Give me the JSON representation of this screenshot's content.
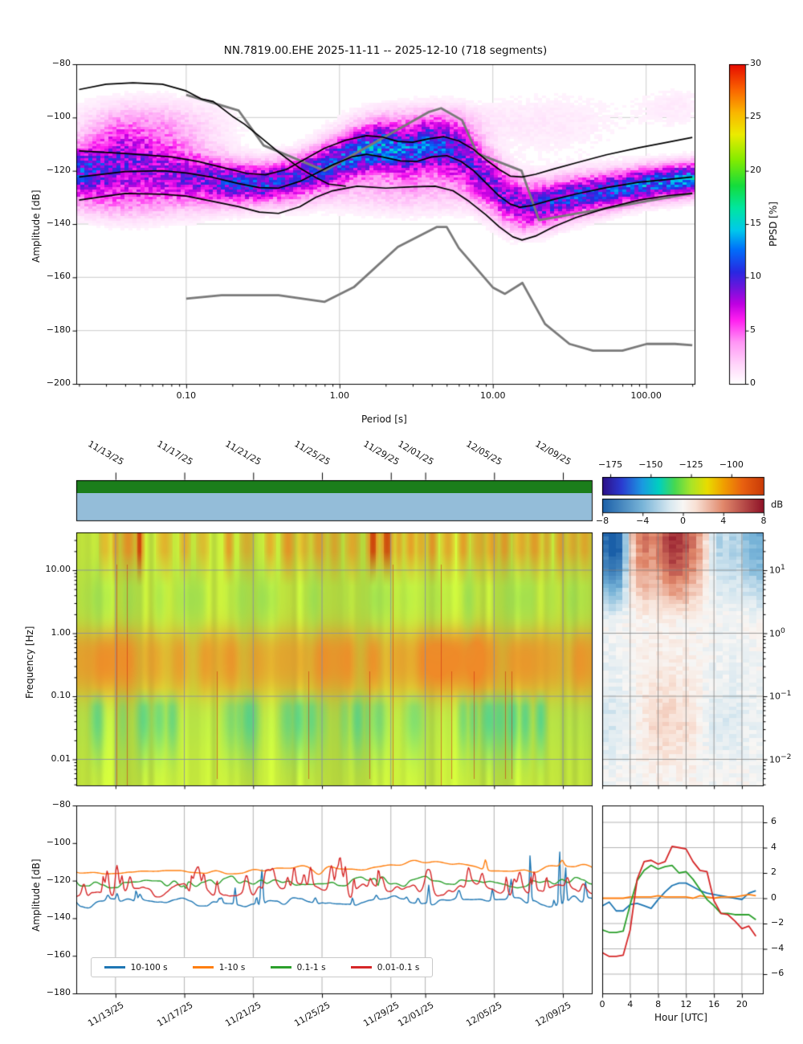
{
  "figure": {
    "type": "seismic noise PPSD / spectrogram summary figure",
    "background": "#ffffff"
  },
  "chart_data": {
    "ppsd": {
      "type": "heatmap",
      "title": "NN.7819.00.EHE   2025-11-11 -- 2025-12-10  (718 segments)",
      "station": "NN.7819.00.EHE",
      "date_range": "2025-11-11 -- 2025-12-10",
      "segments": "718 segments",
      "xlabel": "Period [s]",
      "ylabel": "Amplitude [dB]",
      "xscale": "log",
      "xlim": [
        0.0192,
        207
      ],
      "ylim": [
        -200,
        -80
      ],
      "xticks": {
        "values": [
          0.1,
          1,
          10,
          100
        ],
        "labels": [
          "0.10",
          "1.00",
          "10.00",
          "100.00"
        ]
      },
      "yticks": {
        "values": [
          -80,
          -100,
          -120,
          -140,
          -160,
          -180,
          -200
        ],
        "labels": [
          "−80",
          "−100",
          "−120",
          "−140",
          "−160",
          "−180",
          "−200"
        ]
      },
      "colorbar": {
        "label": "PPSD [%]",
        "ticks": [
          "0",
          "5",
          "10",
          "15",
          "20",
          "25",
          "30"
        ],
        "tick_values": [
          0,
          5,
          10,
          15,
          20,
          25,
          30
        ],
        "range": [
          0,
          30
        ],
        "colormap": "pqlx (white-magenta-blue-cyan-green-yellow-red)"
      },
      "grid": true,
      "density_note": "probability cloud: hump centered ~-120 dB at 0.02-0.15 s, dip ~-125 at 0.3-0.5 s, hump ~-111 at 1-6 s, dip ~-133 at 10-15 s, rising to ~-123 at 200 s; max density ~13%",
      "curves": {
        "nhnm": [
          [
            0.1,
            -91.5
          ],
          [
            0.22,
            -97.4
          ],
          [
            0.32,
            -110.5
          ],
          [
            0.8,
            -120
          ],
          [
            3.8,
            -98
          ],
          [
            4.6,
            -96.5
          ],
          [
            6.3,
            -101
          ],
          [
            7.9,
            -113.5
          ],
          [
            15.4,
            -120
          ],
          [
            20,
            -138.5
          ],
          [
            200,
            -128.4
          ]
        ],
        "nlnm": [
          [
            0.1,
            -168
          ],
          [
            0.17,
            -166.7
          ],
          [
            0.4,
            -166.7
          ],
          [
            0.8,
            -169.2
          ],
          [
            1.24,
            -163.7
          ],
          [
            2.4,
            -148.6
          ],
          [
            4.3,
            -141.1
          ],
          [
            5,
            -141.1
          ],
          [
            6,
            -149
          ],
          [
            10,
            -163.8
          ],
          [
            12,
            -166.2
          ],
          [
            15.6,
            -162.1
          ],
          [
            21.9,
            -177.5
          ],
          [
            31.6,
            -185
          ],
          [
            45,
            -187.5
          ],
          [
            70,
            -187.5
          ],
          [
            101,
            -185
          ],
          [
            154,
            -185
          ],
          [
            200,
            -185.5
          ]
        ],
        "black_max": [
          [
            0.02,
            -89.5
          ],
          [
            0.03,
            -87.5
          ],
          [
            0.045,
            -87
          ],
          [
            0.07,
            -87.5
          ],
          [
            0.1,
            -90
          ],
          [
            0.125,
            -93
          ],
          [
            0.15,
            -94
          ],
          [
            0.2,
            -99.5
          ],
          [
            0.24,
            -102.5
          ],
          [
            0.3,
            -107
          ],
          [
            0.4,
            -113
          ],
          [
            0.55,
            -119
          ],
          [
            0.7,
            -122.5
          ],
          [
            0.85,
            -125
          ],
          [
            1.1,
            -125.8
          ]
        ],
        "black_upper": [
          [
            0.02,
            -112.5
          ],
          [
            0.04,
            -113.5
          ],
          [
            0.08,
            -114.8
          ],
          [
            0.12,
            -116.5
          ],
          [
            0.18,
            -119
          ],
          [
            0.25,
            -121
          ],
          [
            0.33,
            -121.5
          ],
          [
            0.45,
            -119.5
          ],
          [
            0.6,
            -115.5
          ],
          [
            0.8,
            -111.5
          ],
          [
            1.1,
            -108.5
          ],
          [
            1.5,
            -106.8
          ],
          [
            1.9,
            -107.3
          ],
          [
            2.4,
            -109
          ],
          [
            3,
            -109.3
          ],
          [
            3.8,
            -108
          ],
          [
            4.8,
            -107.2
          ],
          [
            6,
            -108.8
          ],
          [
            7.5,
            -112
          ],
          [
            9,
            -115.8
          ],
          [
            11,
            -119.5
          ],
          [
            13,
            -122
          ],
          [
            15.5,
            -122.3
          ],
          [
            19,
            -121.3
          ],
          [
            25,
            -119.3
          ],
          [
            35,
            -117
          ],
          [
            55,
            -114
          ],
          [
            90,
            -111.3
          ],
          [
            140,
            -109.2
          ],
          [
            200,
            -107.5
          ]
        ],
        "black_mid": [
          [
            0.02,
            -122.3
          ],
          [
            0.04,
            -120.3
          ],
          [
            0.07,
            -120
          ],
          [
            0.1,
            -120.8
          ],
          [
            0.15,
            -122.5
          ],
          [
            0.22,
            -124.8
          ],
          [
            0.3,
            -126.3
          ],
          [
            0.4,
            -126.5
          ],
          [
            0.55,
            -124
          ],
          [
            0.7,
            -121
          ],
          [
            0.9,
            -117.8
          ],
          [
            1.2,
            -114.8
          ],
          [
            1.5,
            -113.8
          ],
          [
            1.9,
            -114.8
          ],
          [
            2.5,
            -116.3
          ],
          [
            3.2,
            -116.5
          ],
          [
            4,
            -114.8
          ],
          [
            5,
            -114.3
          ],
          [
            6.2,
            -116.5
          ],
          [
            7.5,
            -120
          ],
          [
            9,
            -124.5
          ],
          [
            11,
            -129.5
          ],
          [
            13,
            -132.5
          ],
          [
            15,
            -133.7
          ],
          [
            18,
            -133
          ],
          [
            24,
            -131
          ],
          [
            35,
            -128.7
          ],
          [
            55,
            -126.3
          ],
          [
            90,
            -124.3
          ],
          [
            140,
            -123.2
          ],
          [
            200,
            -122.3
          ]
        ],
        "black_lower": [
          [
            0.02,
            -131
          ],
          [
            0.04,
            -128.5
          ],
          [
            0.07,
            -128.8
          ],
          [
            0.1,
            -129.5
          ],
          [
            0.15,
            -131.5
          ],
          [
            0.22,
            -133.5
          ],
          [
            0.3,
            -135.5
          ],
          [
            0.4,
            -136
          ],
          [
            0.55,
            -133.5
          ],
          [
            0.7,
            -130
          ],
          [
            0.9,
            -127.5
          ],
          [
            1.3,
            -125.8
          ],
          [
            2,
            -126.5
          ],
          [
            3,
            -126
          ],
          [
            4.2,
            -125.8
          ],
          [
            5.5,
            -127.5
          ],
          [
            7,
            -131.5
          ],
          [
            9,
            -136.5
          ],
          [
            11,
            -141
          ],
          [
            13.5,
            -144.8
          ],
          [
            15.5,
            -146
          ],
          [
            19,
            -144.5
          ],
          [
            25,
            -141
          ],
          [
            35,
            -137.5
          ],
          [
            55,
            -134
          ],
          [
            90,
            -131
          ],
          [
            140,
            -129.3
          ],
          [
            200,
            -128.5
          ]
        ]
      }
    },
    "spectrogram": {
      "type": "heatmap",
      "ylabel": "Frequency [Hz]",
      "yscale": "log",
      "ylim": [
        0.0039,
        40
      ],
      "yticks": {
        "values": [
          10,
          1,
          0.1,
          0.01
        ],
        "labels": [
          "10.00",
          "1.00",
          "0.10",
          "0.01"
        ]
      },
      "date_ticks": {
        "labels": [
          "11/13/25",
          "11/17/25",
          "11/21/25",
          "11/25/25",
          "11/29/25",
          "12/01/25",
          "12/05/25",
          "12/09/25"
        ],
        "day_offsets_from_start": [
          2,
          6,
          10,
          14,
          18,
          20,
          24,
          28
        ]
      },
      "coverage_bars": {
        "top_color": "#1b7e1b",
        "bottom_color": "#94bdd9"
      },
      "colorbar_amplitude": {
        "ticks": [
          "−175",
          "−150",
          "−125",
          "−100"
        ],
        "tick_values": [
          -175,
          -150,
          -125,
          -100
        ],
        "range": [
          -180,
          -80
        ],
        "colormap": "rainbow (indigo-blue-cyan-green-yellow-orange-red)"
      },
      "colorbar_deviation": {
        "label": "dB",
        "ticks": [
          "−8",
          "−4",
          "0",
          "4",
          "8"
        ],
        "tick_values": [
          -8,
          -4,
          0,
          4,
          8
        ],
        "range": [
          -8,
          8
        ],
        "colormap": "RdBu_r (blue-white-red)"
      },
      "content_note": "qualitative: yellow-green background ~-120 dB; orange band 0.15-1 Hz; bursty orange/red vertical streaks above 8 Hz; teal patches below 0.1 Hz; sparse thin red transients",
      "grid": true
    },
    "hour_heatmap": {
      "type": "heatmap",
      "x": "hour of day 0-23",
      "yscale": "log",
      "ylim": [
        0.0039,
        40
      ],
      "right_yticks": {
        "values": [
          10,
          1,
          0.1,
          0.01
        ],
        "labels_base": "10",
        "exponents": [
          "1",
          "0",
          "−1",
          "−2"
        ]
      },
      "content_note": "deviation from daily mean [dB]: strong blue (-6) hours 0-2 above 3 Hz, strong red (+5 to +7) hours 4-15 above 3 Hz peaking 9-12, light blue hours 16-23 at high freq, faint patterns below 1 Hz",
      "grid": true
    },
    "psd_timeseries": {
      "type": "line",
      "ylabel": "Amplitude [dB]",
      "ylim": [
        -180,
        -80
      ],
      "yticks": {
        "values": [
          -80,
          -100,
          -120,
          -140,
          -160,
          -180
        ],
        "labels": [
          "−80",
          "−100",
          "−120",
          "−140",
          "−160",
          "−180"
        ]
      },
      "date_ticks": {
        "labels": [
          "11/13/25",
          "11/17/25",
          "11/21/25",
          "11/25/25",
          "11/29/25",
          "12/01/25",
          "12/05/25",
          "12/09/25"
        ],
        "day_offsets_from_start": [
          2,
          6,
          10,
          14,
          18,
          20,
          24,
          28
        ]
      },
      "series": [
        {
          "label": "10-100 s",
          "color": "#1f77b4",
          "typical_level_db": -131
        },
        {
          "label": "1-10 s",
          "color": "#ff7f0e",
          "typical_level_db": -114
        },
        {
          "label": "0.1-1 s",
          "color": "#2ca02c",
          "typical_level_db": -121
        },
        {
          "label": "0.01-0.1 s",
          "color": "#d62728",
          "typical_level_db": -125
        }
      ],
      "legend_position": "lower left",
      "grid": "vertical only"
    },
    "diurnal": {
      "type": "line",
      "xlabel": "Hour [UTC]",
      "xticks": {
        "values": [
          0,
          4,
          8,
          12,
          16,
          20
        ],
        "labels": [
          "0",
          "4",
          "8",
          "12",
          "16",
          "20"
        ]
      },
      "yticks": {
        "values": [
          6,
          4,
          2,
          0,
          -2,
          -4,
          -6
        ],
        "labels": [
          "6",
          "4",
          "2",
          "0",
          "−2",
          "−4",
          "−6"
        ]
      },
      "ylim": [
        -7.8,
        7.6
      ],
      "hours": [
        0,
        1,
        2,
        3,
        4,
        5,
        6,
        7,
        8,
        9,
        10,
        11,
        12,
        13,
        14,
        15,
        16,
        17,
        18,
        19,
        20,
        21,
        22
      ],
      "series": [
        {
          "label": "10-100 s",
          "color": "#1f77b4",
          "values": [
            -0.6,
            -0.3,
            -1.0,
            -1.0,
            -0.5,
            -0.4,
            -0.6,
            -0.8,
            -0.1,
            0.5,
            1.0,
            1.2,
            1.2,
            0.9,
            0.6,
            0.4,
            0.3,
            0.2,
            0.1,
            0.0,
            -0.1,
            0.4,
            0.6
          ]
        },
        {
          "label": "1-10 s",
          "color": "#ff7f0e",
          "values": [
            0.0,
            0.0,
            0.0,
            0.0,
            0.1,
            0.1,
            0.1,
            0.1,
            0.2,
            0.1,
            0.1,
            0.1,
            0.1,
            0.0,
            0.2,
            0.1,
            0.0,
            0.1,
            0.1,
            0.1,
            0.2,
            0.3,
            0.2
          ]
        },
        {
          "label": "0.1-1 s",
          "color": "#2ca02c",
          "values": [
            -2.5,
            -2.7,
            -2.7,
            -2.6,
            -0.5,
            1.4,
            2.2,
            2.6,
            2.3,
            2.5,
            2.6,
            2.0,
            2.1,
            1.5,
            0.7,
            -0.1,
            -0.6,
            -1.2,
            -1.2,
            -1.3,
            -1.3,
            -1.3,
            -1.7
          ]
        },
        {
          "label": "0.01-0.1 s",
          "color": "#d62728",
          "values": [
            -4.3,
            -4.6,
            -4.6,
            -4.5,
            -2.5,
            1.5,
            2.9,
            3.0,
            2.7,
            2.9,
            4.1,
            4.0,
            3.9,
            2.9,
            2.2,
            2.1,
            -0.2,
            -1.2,
            -1.3,
            -1.8,
            -2.4,
            -2.2,
            -3.0
          ]
        }
      ],
      "grid": true
    }
  }
}
